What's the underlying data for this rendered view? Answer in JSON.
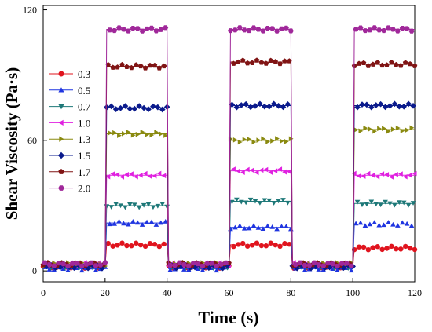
{
  "chart_data": {
    "type": "line",
    "xlabel": "Time (s)",
    "ylabel": "Shear Viscosity (Pa·s)",
    "xlim": [
      0,
      120
    ],
    "ylim": [
      -5,
      122
    ],
    "xticks": [
      0,
      20,
      40,
      60,
      80,
      100,
      120
    ],
    "yticks": [
      0,
      60,
      120
    ],
    "grid": false,
    "legend_placement": "left",
    "high_intervals": [
      [
        20.5,
        40
      ],
      [
        60.5,
        80
      ],
      [
        100.5,
        120
      ]
    ],
    "series": [
      {
        "name": "0.3",
        "color": "#e0141e",
        "marker": "circle",
        "low": 2,
        "high": [
          12,
          12,
          10.5
        ]
      },
      {
        "name": "0.5",
        "color": "#1f35e0",
        "marker": "triangle-up",
        "low": 1,
        "high": [
          22,
          20,
          21.5
        ]
      },
      {
        "name": "0.7",
        "color": "#1e7878",
        "marker": "triangle-down",
        "low": 2,
        "high": [
          30,
          32,
          31
        ]
      },
      {
        "name": "1.0",
        "color": "#e020e0",
        "marker": "triangle-left",
        "low": 3,
        "high": [
          44,
          46,
          44
        ]
      },
      {
        "name": "1.3",
        "color": "#8a8a10",
        "marker": "triangle-right",
        "low": 3,
        "high": [
          63,
          60,
          65
        ]
      },
      {
        "name": "1.5",
        "color": "#0a1a8c",
        "marker": "diamond",
        "low": 2,
        "high": [
          75,
          76,
          76
        ]
      },
      {
        "name": "1.7",
        "color": "#801414",
        "marker": "pentagon",
        "low": 3,
        "high": [
          94,
          96,
          95
        ]
      },
      {
        "name": "2.0",
        "color": "#a0289a",
        "marker": "hexagon",
        "low": 3,
        "high": [
          111,
          111,
          111
        ]
      }
    ]
  }
}
